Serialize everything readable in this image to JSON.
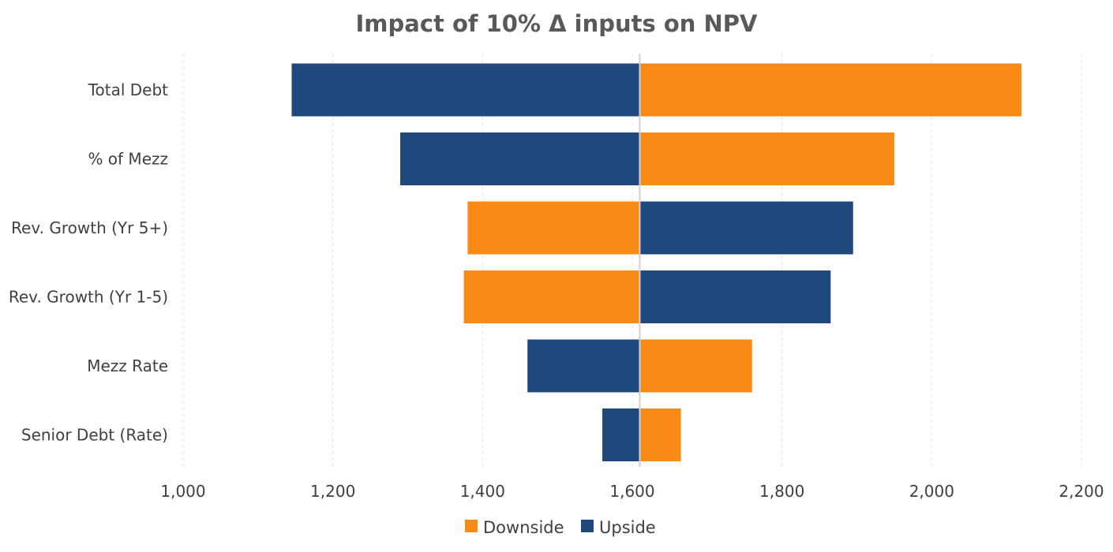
{
  "chart_data": {
    "type": "bar",
    "orientation": "horizontal",
    "subtype": "tornado",
    "title": "Impact of 10% Δ inputs on NPV",
    "base_value": 1610,
    "xlim": [
      1000,
      2200
    ],
    "xticks": [
      1000,
      1200,
      1400,
      1600,
      1800,
      2000,
      2200
    ],
    "xtick_labels": [
      "1,000",
      "1,200",
      "1,400",
      "1,600",
      "1,800",
      "2,000",
      "2,200"
    ],
    "grid": true,
    "legend_position": "bottom",
    "categories": [
      "Total Debt",
      "% of Mezz",
      "Rev. Growth (Yr 5+)",
      "Rev. Growth (Yr 1-5)",
      "Mezz Rate",
      "Senior Debt (Rate)"
    ],
    "series": [
      {
        "name": "Downside",
        "color": "#f98a16",
        "values": [
          2120,
          1950,
          1380,
          1375,
          1760,
          1665
        ]
      },
      {
        "name": "Upside",
        "color": "#1f497d",
        "values": [
          1145,
          1290,
          1895,
          1865,
          1460,
          1560
        ]
      }
    ]
  }
}
